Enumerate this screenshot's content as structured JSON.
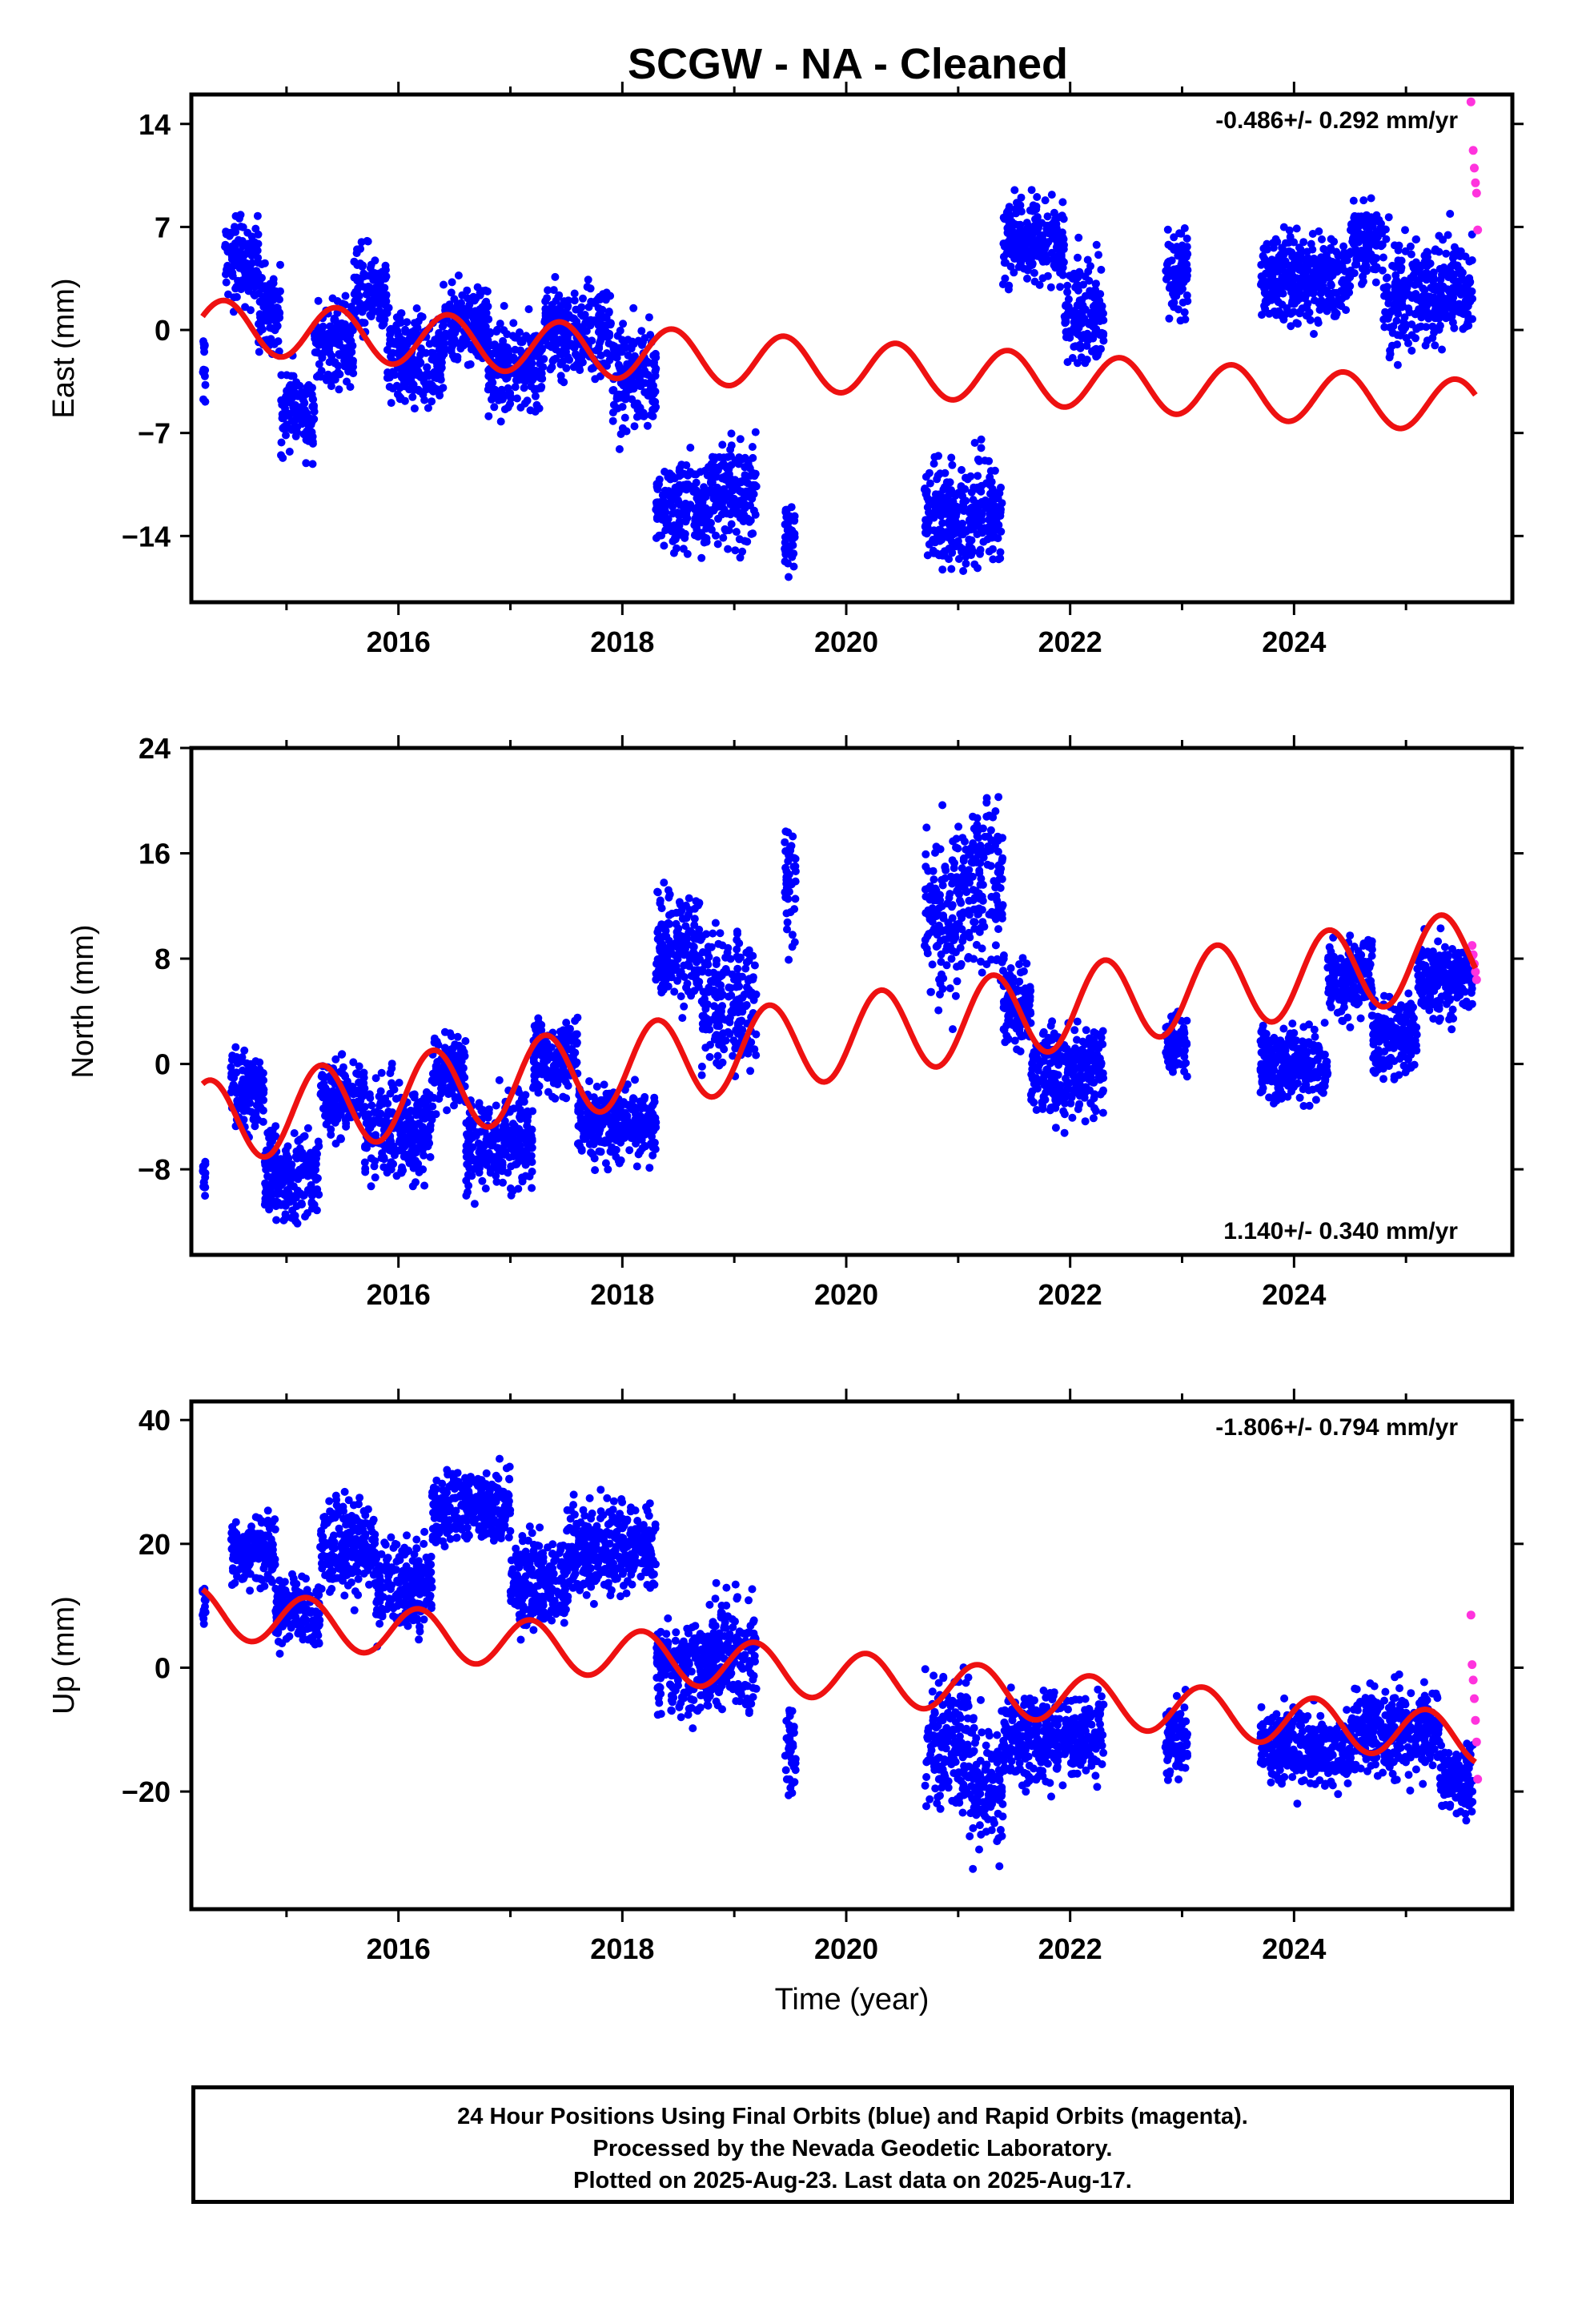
{
  "title": "SCGW  - NA - Cleaned",
  "colors": {
    "final": "#0000ff",
    "rapid": "#ff33dd",
    "model": "#ee1111",
    "frame": "#000000"
  },
  "chart_data": [
    {
      "type": "scatter",
      "component": "east",
      "ylabel": "East (mm)",
      "xlabel": "",
      "rate_label": "-0.486+/- 0.292 mm/yr",
      "rate_position": "top-right",
      "xlim": [
        2014.15,
        2025.95
      ],
      "ylim": [
        -18.5,
        16
      ],
      "yticks": [
        14,
        7,
        0,
        -7,
        -14
      ],
      "xticks": [
        2016,
        2018,
        2020,
        2022,
        2024
      ],
      "xminor": [
        2015,
        2017,
        2019,
        2021,
        2023,
        2025
      ],
      "model": {
        "a": 0.3,
        "b": -0.486,
        "amp": 1.8,
        "phase": 0.35
      },
      "segments": [
        [
          2014.25,
          2014.28,
          -2.5,
          2
        ],
        [
          2014.45,
          2014.75,
          4.5,
          2
        ],
        [
          2014.75,
          2014.95,
          1.5,
          2
        ],
        [
          2014.95,
          2015.25,
          -5.5,
          2
        ],
        [
          2015.25,
          2015.6,
          -1.0,
          2
        ],
        [
          2015.6,
          2015.9,
          2.5,
          2
        ],
        [
          2015.9,
          2016.4,
          -2.0,
          2
        ],
        [
          2016.4,
          2016.8,
          0.5,
          2
        ],
        [
          2016.8,
          2017.3,
          -2.5,
          2
        ],
        [
          2017.3,
          2017.9,
          0.0,
          2
        ],
        [
          2017.9,
          2018.3,
          -3.5,
          2.5
        ],
        [
          2018.3,
          2018.75,
          -12.0,
          2
        ],
        [
          2018.75,
          2019.2,
          -11.0,
          2.5
        ],
        [
          2019.45,
          2019.55,
          -14.0,
          1.5
        ],
        [
          2020.7,
          2021.4,
          -12.5,
          2.5
        ],
        [
          2021.4,
          2021.95,
          6.0,
          2
        ],
        [
          2021.95,
          2022.3,
          1.0,
          2.5
        ],
        [
          2022.85,
          2023.05,
          4.0,
          2
        ],
        [
          2023.7,
          2024.5,
          3.5,
          2
        ],
        [
          2024.5,
          2024.8,
          6.0,
          2
        ],
        [
          2024.8,
          2025.6,
          2.5,
          2.5
        ]
      ],
      "rapid_points": [
        [
          2025.58,
          15.5
        ],
        [
          2025.6,
          12.2
        ],
        [
          2025.61,
          11.0
        ],
        [
          2025.62,
          10.0
        ],
        [
          2025.63,
          9.3
        ],
        [
          2025.64,
          6.8
        ]
      ]
    },
    {
      "type": "scatter",
      "component": "north",
      "ylabel": "North (mm)",
      "xlabel": "",
      "rate_label": "1.140+/- 0.340 mm/yr",
      "rate_position": "bottom-right",
      "xlim": [
        2014.15,
        2025.95
      ],
      "ylim": [
        -14.5,
        24
      ],
      "yticks": [
        24,
        16,
        8,
        0,
        -8
      ],
      "xticks": [
        2016,
        2018,
        2020,
        2022,
        2024
      ],
      "xminor": [
        2015,
        2017,
        2019,
        2021,
        2023,
        2025
      ],
      "model": {
        "a": -4.5,
        "b": 1.14,
        "amp": 3.2,
        "phase": 1.2
      },
      "segments": [
        [
          2014.25,
          2014.28,
          -9.0,
          1.5
        ],
        [
          2014.5,
          2014.8,
          -2.0,
          2
        ],
        [
          2014.8,
          2015.3,
          -8.5,
          2.5
        ],
        [
          2015.3,
          2015.7,
          -2.5,
          2
        ],
        [
          2015.7,
          2016.3,
          -5.0,
          2.5
        ],
        [
          2016.3,
          2016.6,
          -0.5,
          2
        ],
        [
          2016.6,
          2017.2,
          -6.0,
          2.5
        ],
        [
          2017.2,
          2017.6,
          0.5,
          2
        ],
        [
          2017.6,
          2018.3,
          -4.5,
          2
        ],
        [
          2018.3,
          2018.7,
          9.0,
          3
        ],
        [
          2018.7,
          2019.2,
          5.0,
          3.5
        ],
        [
          2019.45,
          2019.55,
          14.0,
          3
        ],
        [
          2020.7,
          2021.05,
          11.0,
          4.5
        ],
        [
          2021.05,
          2021.4,
          14.0,
          5
        ],
        [
          2021.4,
          2021.65,
          4.5,
          2.5
        ],
        [
          2021.65,
          2022.3,
          -0.5,
          2.5
        ],
        [
          2022.85,
          2023.05,
          1.5,
          1.5
        ],
        [
          2023.7,
          2024.3,
          0.0,
          2
        ],
        [
          2024.3,
          2024.7,
          6.5,
          2
        ],
        [
          2024.7,
          2025.1,
          2.0,
          2
        ],
        [
          2025.1,
          2025.6,
          6.5,
          2
        ]
      ],
      "rapid_points": [
        [
          2025.59,
          9.0
        ],
        [
          2025.6,
          8.3
        ],
        [
          2025.61,
          7.6
        ],
        [
          2025.62,
          7.0
        ],
        [
          2025.63,
          6.4
        ]
      ]
    },
    {
      "type": "scatter",
      "component": "up",
      "ylabel": "Up (mm)",
      "xlabel": "Time (year)",
      "rate_label": "-1.806+/- 0.794 mm/yr",
      "rate_position": "top-right",
      "xlim": [
        2014.15,
        2025.95
      ],
      "ylim": [
        -39,
        43
      ],
      "yticks": [
        40,
        20,
        0,
        -20
      ],
      "xticks": [
        2016,
        2018,
        2020,
        2022,
        2024
      ],
      "xminor": [
        2015,
        2017,
        2019,
        2021,
        2023,
        2025
      ],
      "model": {
        "a": 9.0,
        "b": -1.806,
        "amp": 4.0,
        "phase": 2.0
      },
      "segments": [
        [
          2014.25,
          2014.28,
          10.0,
          3
        ],
        [
          2014.5,
          2014.9,
          19.0,
          4
        ],
        [
          2014.9,
          2015.3,
          9.0,
          4
        ],
        [
          2015.3,
          2015.8,
          20.0,
          5
        ],
        [
          2015.8,
          2016.3,
          13.0,
          5
        ],
        [
          2016.3,
          2017.0,
          26.0,
          4
        ],
        [
          2017.0,
          2017.5,
          14.0,
          5
        ],
        [
          2017.5,
          2018.3,
          19.0,
          5
        ],
        [
          2018.3,
          2018.8,
          0.0,
          5
        ],
        [
          2018.8,
          2019.2,
          2.0,
          6
        ],
        [
          2019.45,
          2019.55,
          -12.0,
          6
        ],
        [
          2020.7,
          2021.1,
          -12.0,
          8
        ],
        [
          2021.1,
          2021.4,
          -18.0,
          8
        ],
        [
          2021.4,
          2022.3,
          -11.0,
          5
        ],
        [
          2022.85,
          2023.05,
          -12.0,
          4
        ],
        [
          2023.7,
          2024.5,
          -13.0,
          4
        ],
        [
          2024.5,
          2025.3,
          -10.0,
          5
        ],
        [
          2025.3,
          2025.6,
          -18.0,
          4
        ]
      ],
      "rapid_points": [
        [
          2025.58,
          8.5
        ],
        [
          2025.59,
          0.5
        ],
        [
          2025.6,
          -2.0
        ],
        [
          2025.61,
          -5.0
        ],
        [
          2025.62,
          -8.5
        ],
        [
          2025.63,
          -12.0
        ],
        [
          2025.64,
          -18.0
        ]
      ]
    }
  ],
  "footer": {
    "line1": "24 Hour Positions Using Final Orbits (blue) and Rapid Orbits (magenta).",
    "line2": "Processed by the Nevada Geodetic Laboratory.",
    "line3": "Plotted on 2025-Aug-23. Last data on 2025-Aug-17."
  }
}
